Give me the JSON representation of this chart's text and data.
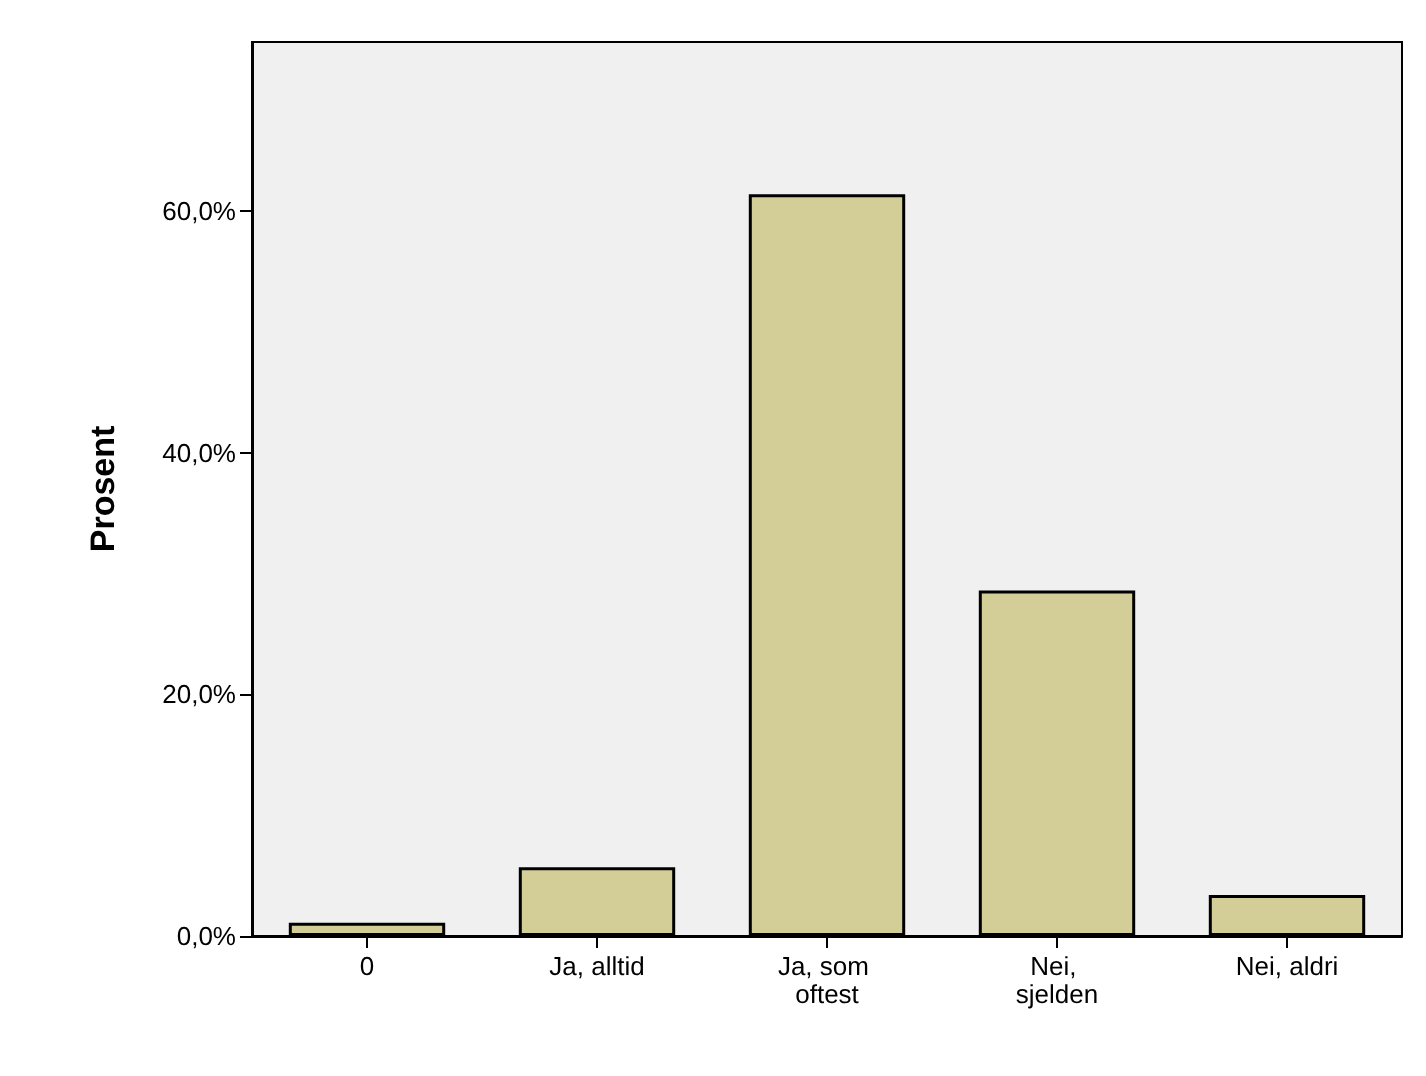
{
  "chart_data": {
    "type": "bar",
    "ylabel": "Prosent",
    "categories": [
      "0",
      "Ja, alltid",
      "Ja, som oftest",
      "Nei, sjelden",
      "Nei, aldri"
    ],
    "values": [
      1.1,
      5.7,
      61.4,
      28.6,
      3.4
    ],
    "color": "#d3ce98",
    "ylim": [
      0,
      74
    ],
    "yticks": [
      {
        "value": 0,
        "label": "0,0%"
      },
      {
        "value": 20,
        "label": "20,0%"
      },
      {
        "value": 40,
        "label": "40,0%"
      },
      {
        "value": 60,
        "label": "60,0%"
      }
    ],
    "grid": false
  }
}
